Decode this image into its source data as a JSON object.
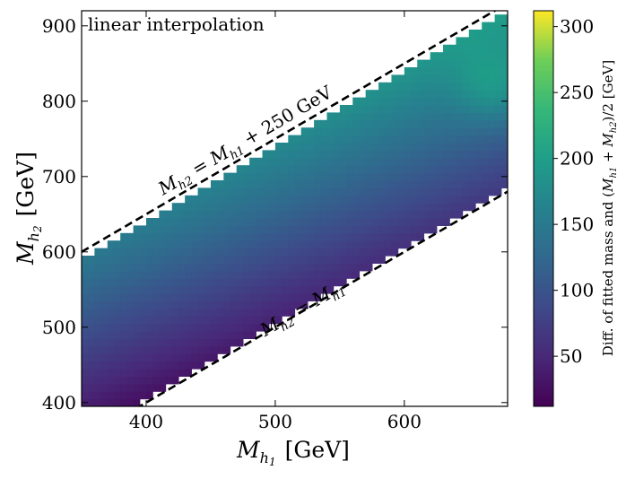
{
  "chart_data": {
    "type": "heatmap",
    "title": "",
    "corner_label": "linear interpolation",
    "xlabel": "M_h1 [GeV]",
    "ylabel": "M_h2 [GeV]",
    "xlabel_parts": {
      "main": "M",
      "sub1": "h",
      "sub2": "1",
      "unit": "[GeV]"
    },
    "ylabel_parts": {
      "main": "M",
      "sub1": "h",
      "sub2": "2",
      "unit": "[GeV]"
    },
    "xlim": [
      350,
      680
    ],
    "ylim": [
      395,
      920
    ],
    "xticks": [
      400,
      500,
      600
    ],
    "yticks": [
      400,
      500,
      600,
      700,
      800,
      900
    ],
    "grid": false,
    "region": {
      "lower_edge": "M_h2 = M_h1 + 5",
      "upper_edge": "M_h2 = M_h1 + 240",
      "x_step": 5,
      "y_step": 10
    },
    "dashed_lines": [
      {
        "name": "upper-boundary",
        "offset": 250,
        "label_parts": {
          "lhs": "M",
          "lhs_sub": "h2",
          "eq": " = ",
          "rhs": "M",
          "rhs_sub": "h1",
          "rest": " + 250 GeV"
        }
      },
      {
        "name": "diagonal",
        "offset": 0,
        "label_parts": {
          "lhs": "M",
          "lhs_sub": "h2",
          "eq": " = ",
          "rhs": "M",
          "rhs_sub": "h1",
          "rest": ""
        }
      }
    ],
    "colorbar": {
      "label": "Diff. of fitted mass and (M_h1 + M_h2)/2 [GeV]",
      "label_parts": {
        "pre": "Diff. of fitted mass and (",
        "m1": "M",
        "s1": "h1",
        "plus": " + ",
        "m2": "M",
        "s2": "h2",
        "post": ")/2 [GeV]"
      },
      "range": [
        12,
        312
      ],
      "ticks": [
        50,
        100,
        150,
        200,
        250,
        300
      ],
      "colormap": "viridis"
    },
    "value_model": {
      "description": "mass difference grows with (M_h2 - M_h1) and with M_h1",
      "base": 15,
      "per_gev_diff": 0.55,
      "per_gev_mh1": 0.16,
      "high_mass_bump": {
        "center_x": 670,
        "center_y": 820,
        "amplitude": 45,
        "sigma_x": 20,
        "sigma_y": 35
      }
    }
  }
}
